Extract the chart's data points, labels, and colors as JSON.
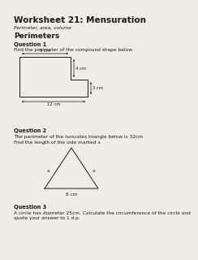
{
  "title": "Worksheet 21: Mensuration",
  "subtitle": "Perimeter, area, volume",
  "section1": "Perimeters",
  "q1_bold": "Question 1",
  "q1_text": "Find the perimeter of the compound shape below",
  "q2_bold": "Question 2",
  "q2_text": "The perimeter of the isosceles triangle below is 32cm",
  "q2_text2": "Find the length of the side marked x",
  "q3_bold": "Question 3",
  "q3_text": "A circle has diameter 25cm. Calculate the circumference of the circle and\nquote your answer to 1 d.p.",
  "bg_color": "#f0ece4",
  "text_color": "#1a1a1a",
  "shape_color": "#1a1a1a"
}
